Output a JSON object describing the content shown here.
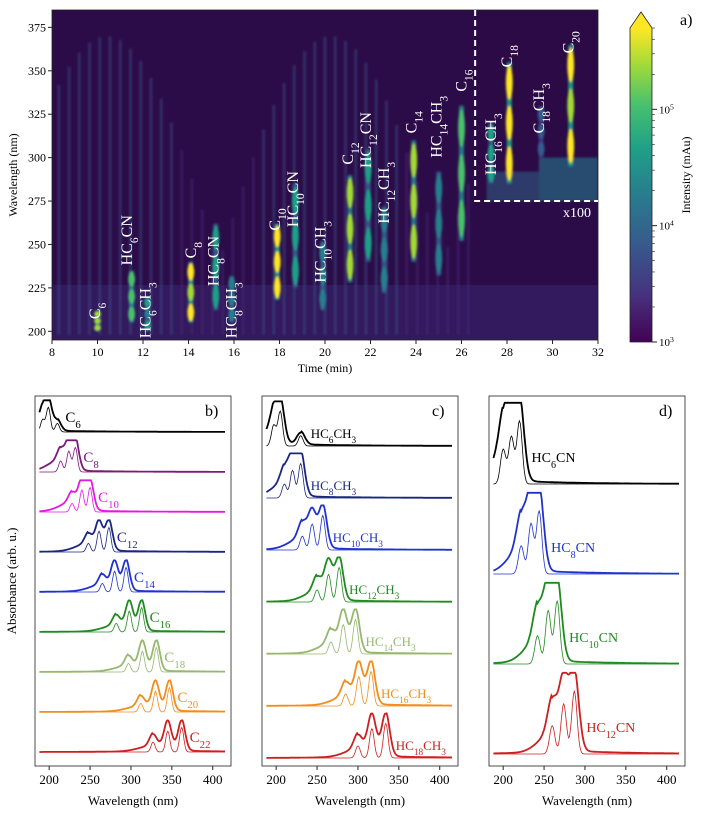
{
  "chart_data": [
    {
      "type": "heatmap",
      "panel_label": "a)",
      "xlabel": "Time (min)",
      "ylabel": "Wavelength (nm)",
      "xlim": [
        8,
        32
      ],
      "ylim": [
        195,
        385
      ],
      "xticks": [
        8,
        10,
        12,
        14,
        16,
        18,
        20,
        22,
        24,
        26,
        28,
        30,
        32
      ],
      "yticks": [
        200,
        225,
        250,
        275,
        300,
        325,
        350,
        375
      ],
      "colorbar": {
        "label": "Intensity (mAu)",
        "scale": "log",
        "ticks": [
          {
            "base": "10",
            "exp": "3",
            "value": 1000
          },
          {
            "base": "10",
            "exp": "4",
            "value": 10000
          },
          {
            "base": "10",
            "exp": "5",
            "value": 100000
          }
        ],
        "range": [
          1000,
          500000
        ]
      },
      "inset": {
        "label": "x100",
        "time_range": [
          26.6,
          32
        ],
        "wl_range": [
          275,
          385
        ]
      },
      "peaks": [
        {
          "id": "C6",
          "main": "C",
          "sub": "6",
          "time": 10.0,
          "wl": [
            200,
            212
          ],
          "strength": 0.9
        },
        {
          "id": "HC6CN",
          "main": "HC",
          "sub": "6",
          "tail": "CN",
          "time": 11.5,
          "wl": [
            205,
            235
          ],
          "strength": 0.75
        },
        {
          "id": "HC6CH3",
          "main": "HC",
          "sub": "6",
          "tail": "CH",
          "sub2": "3",
          "time": 12.2,
          "wl": [
            200,
            220
          ],
          "strength": 0.5
        },
        {
          "id": "C8",
          "main": "C",
          "sub": "8",
          "time": 14.1,
          "wl": [
            205,
            240
          ],
          "strength": 0.95
        },
        {
          "id": "HC8CN",
          "main": "HC",
          "sub": "8",
          "tail": "CN",
          "time": 15.2,
          "wl": [
            212,
            262
          ],
          "strength": 0.6
        },
        {
          "id": "HC8CH3",
          "main": "HC",
          "sub": "8",
          "tail": "CH",
          "sub2": "3",
          "time": 15.9,
          "wl": [
            205,
            232
          ],
          "strength": 0.45
        },
        {
          "id": "C10",
          "main": "C",
          "sub": "10",
          "time": 17.9,
          "wl": [
            218,
            262
          ],
          "strength": 1.0
        },
        {
          "id": "HC10CN",
          "main": "HC",
          "sub": "10",
          "tail": "CN",
          "time": 18.7,
          "wl": [
            225,
            285
          ],
          "strength": 0.55
        },
        {
          "id": "HC10CH3",
          "main": "HC",
          "sub": "10",
          "tail": "CH",
          "sub2": "3",
          "time": 19.9,
          "wl": [
            212,
            252
          ],
          "strength": 0.45
        },
        {
          "id": "C12",
          "main": "C",
          "sub": "12",
          "time": 21.1,
          "wl": [
            228,
            290
          ],
          "strength": 0.9
        },
        {
          "id": "HC12CN",
          "main": "HC",
          "sub": "12",
          "tail": "CN",
          "time": 21.9,
          "wl": [
            240,
            305
          ],
          "strength": 0.55
        },
        {
          "id": "HC12CH3",
          "main": "HC",
          "sub": "12",
          "tail": "CH",
          "sub2": "3",
          "time": 22.6,
          "wl": [
            222,
            272
          ],
          "strength": 0.45
        },
        {
          "id": "C14",
          "main": "C",
          "sub": "14",
          "time": 23.9,
          "wl": [
            240,
            310
          ],
          "strength": 0.85
        },
        {
          "id": "HC14CH3",
          "main": "HC",
          "sub": "14",
          "tail": "CH",
          "sub2": "3",
          "time": 25.0,
          "wl": [
            232,
            292
          ],
          "strength": 0.4
        },
        {
          "id": "C16",
          "main": "C",
          "sub": "16",
          "time": 26.0,
          "wl": [
            252,
            330
          ],
          "strength": 0.75
        },
        {
          "id": "HC16CH3",
          "main": "HC",
          "sub": "16",
          "tail": "CH",
          "sub2": "3",
          "time": 27.3,
          "wl": [
            285,
            320
          ],
          "strength": 0.6
        },
        {
          "id": "C18",
          "main": "C",
          "sub": "18",
          "time": 28.1,
          "wl": [
            285,
            355
          ],
          "strength": 1.0
        },
        {
          "id": "C18CH3",
          "main": "C",
          "sub": "18",
          "tail": "CH",
          "sub2": "3",
          "time": 29.5,
          "wl": [
            300,
            330
          ],
          "strength": 0.35
        },
        {
          "id": "C20",
          "main": "C",
          "sub": "20",
          "time": 30.8,
          "wl": [
            295,
            365
          ],
          "strength": 0.95
        }
      ]
    },
    {
      "type": "line",
      "panel_label": "b)",
      "xlabel": "Wavelength (nm)",
      "ylabel": "Absorbance (arb. u.)",
      "xlim": [
        190,
        415
      ],
      "xticks": [
        200,
        250,
        300,
        350,
        400
      ],
      "series": [
        {
          "name": "C6",
          "main": "C",
          "sub": "6",
          "color": "#000000",
          "peaks": [
            [
              192,
              0.5
            ],
            [
              199,
              1.0
            ],
            [
              210,
              0.35
            ]
          ]
        },
        {
          "name": "C8",
          "main": "C",
          "sub": "8",
          "color": "#7b1a7b",
          "peaks": [
            [
              214,
              0.45
            ],
            [
              224,
              0.85
            ],
            [
              232,
              1.0
            ]
          ]
        },
        {
          "name": "C10",
          "main": "C",
          "sub": "10",
          "color": "#e11be1",
          "peaks": [
            [
              228,
              0.35
            ],
            [
              240,
              0.9
            ],
            [
              250,
              1.0
            ]
          ]
        },
        {
          "name": "C12",
          "main": "C",
          "sub": "12",
          "color": "#1a2680",
          "peaks": [
            [
              248,
              0.35
            ],
            [
              261,
              0.85
            ],
            [
              273,
              1.0
            ]
          ]
        },
        {
          "name": "C14",
          "main": "C",
          "sub": "14",
          "color": "#1f33cc",
          "peaks": [
            [
              265,
              0.35
            ],
            [
              280,
              0.85
            ],
            [
              294,
              1.0
            ]
          ]
        },
        {
          "name": "C16",
          "main": "C",
          "sub": "16",
          "color": "#1f8a1f",
          "peaks": [
            [
              282,
              0.35
            ],
            [
              298,
              0.85
            ],
            [
              313,
              1.0
            ]
          ]
        },
        {
          "name": "C18",
          "main": "C",
          "sub": "18",
          "color": "#96b86e",
          "peaks": [
            [
              297,
              0.35
            ],
            [
              314,
              0.85
            ],
            [
              331,
              1.0
            ]
          ]
        },
        {
          "name": "C20",
          "main": "C",
          "sub": "20",
          "color": "#f28c1c",
          "peaks": [
            [
              312,
              0.35
            ],
            [
              330,
              0.85
            ],
            [
              347,
              1.0
            ]
          ]
        },
        {
          "name": "C22",
          "main": "C",
          "sub": "22",
          "color": "#cc1f1f",
          "peaks": [
            [
              327,
              0.4
            ],
            [
              345,
              0.85
            ],
            [
              362,
              1.0
            ]
          ]
        }
      ]
    },
    {
      "type": "line",
      "panel_label": "c)",
      "xlabel": "Wavelength (nm)",
      "xlim": [
        190,
        415
      ],
      "xticks": [
        200,
        250,
        300,
        350,
        400
      ],
      "series": [
        {
          "name": "HC6CH3",
          "main": "HC",
          "sub": "6",
          "tail": "CH",
          "sub2": "3",
          "color": "#000000",
          "peaks": [
            [
              197,
              0.6
            ],
            [
              205,
              1.0
            ],
            [
              230,
              0.3
            ]
          ]
        },
        {
          "name": "HC8CH3",
          "main": "HC",
          "sub": "8",
          "tail": "CH",
          "sub2": "3",
          "color": "#1a2680",
          "peaks": [
            [
              210,
              0.4
            ],
            [
              220,
              0.8
            ],
            [
              230,
              1.0
            ]
          ]
        },
        {
          "name": "HC10CH3",
          "main": "HC",
          "sub": "10",
          "tail": "CH",
          "sub2": "3",
          "color": "#1f33cc",
          "peaks": [
            [
              232,
              0.4
            ],
            [
              244,
              0.75
            ],
            [
              257,
              1.0
            ]
          ]
        },
        {
          "name": "HC12CH3",
          "main": "HC",
          "sub": "12",
          "tail": "CH",
          "sub2": "3",
          "color": "#1f8a1f",
          "peaks": [
            [
              250,
              0.35
            ],
            [
              264,
              0.8
            ],
            [
              277,
              1.0
            ]
          ]
        },
        {
          "name": "HC14CH3",
          "main": "HC",
          "sub": "14",
          "tail": "CH",
          "sub2": "3",
          "color": "#96b86e",
          "peaks": [
            [
              267,
              0.35
            ],
            [
              282,
              0.85
            ],
            [
              297,
              1.0
            ]
          ]
        },
        {
          "name": "HC16CH3",
          "main": "HC",
          "sub": "16",
          "tail": "CH",
          "sub2": "3",
          "color": "#f28c1c",
          "peaks": [
            [
              285,
              0.35
            ],
            [
              301,
              0.85
            ],
            [
              316,
              1.0
            ]
          ]
        },
        {
          "name": "HC18CH3",
          "main": "HC",
          "sub": "18",
          "tail": "CH",
          "sub2": "3",
          "color": "#cc1f1f",
          "peaks": [
            [
              300,
              0.35
            ],
            [
              317,
              0.85
            ],
            [
              334,
              1.0
            ]
          ]
        }
      ]
    },
    {
      "type": "line",
      "panel_label": "d)",
      "xlabel": "Wavelength (nm)",
      "xlim": [
        190,
        415
      ],
      "xticks": [
        200,
        250,
        300,
        350,
        400
      ],
      "series": [
        {
          "name": "HC6CN",
          "main": "HC",
          "sub": "6",
          "tail": "CN",
          "color": "#000000",
          "peaks": [
            [
              200,
              0.55
            ],
            [
              210,
              0.75
            ],
            [
              220,
              1.0
            ]
          ]
        },
        {
          "name": "HC8CN",
          "main": "HC",
          "sub": "8",
          "tail": "CN",
          "color": "#1f33cc",
          "peaks": [
            [
              222,
              0.45
            ],
            [
              234,
              0.8
            ],
            [
              244,
              1.0
            ]
          ]
        },
        {
          "name": "HC10CN",
          "main": "HC",
          "sub": "10",
          "tail": "CN",
          "color": "#1f8a1f",
          "peaks": [
            [
              242,
              0.45
            ],
            [
              255,
              0.85
            ],
            [
              266,
              1.0
            ]
          ]
        },
        {
          "name": "HC12CN",
          "main": "HC",
          "sub": "12",
          "tail": "CN",
          "color": "#cc1f1f",
          "peaks": [
            [
              260,
              0.45
            ],
            [
              274,
              0.8
            ],
            [
              287,
              1.0
            ]
          ]
        }
      ]
    }
  ]
}
